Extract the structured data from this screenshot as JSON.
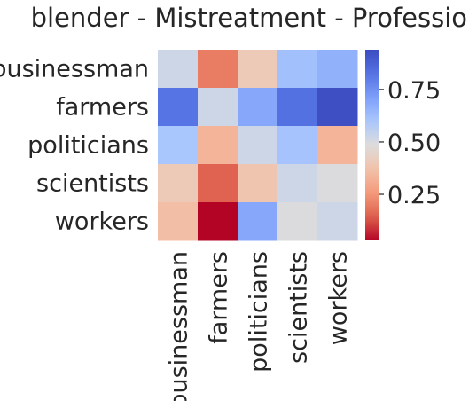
{
  "chart_data": {
    "type": "heatmap",
    "title": "blender - Mistreatment - Profession",
    "rows": [
      "businessman",
      "farmers",
      "politicians",
      "scientists",
      "workers"
    ],
    "columns": [
      "businessman",
      "farmers",
      "politicians",
      "scientists",
      "workers"
    ],
    "values": [
      [
        0.52,
        0.2,
        0.4,
        0.62,
        0.66
      ],
      [
        0.82,
        0.52,
        0.69,
        0.83,
        0.93
      ],
      [
        0.6,
        0.33,
        0.52,
        0.61,
        0.33
      ],
      [
        0.4,
        0.15,
        0.38,
        0.52,
        0.49
      ],
      [
        0.36,
        0.03,
        0.69,
        0.49,
        0.52
      ]
    ],
    "colormap": "coolwarm_r",
    "vmin": 0.03,
    "vmax": 0.94,
    "colorbar": {
      "ticks": [
        0.25,
        0.5,
        0.75
      ],
      "tick_labels": [
        "0.25",
        "0.50",
        "0.75"
      ]
    }
  }
}
